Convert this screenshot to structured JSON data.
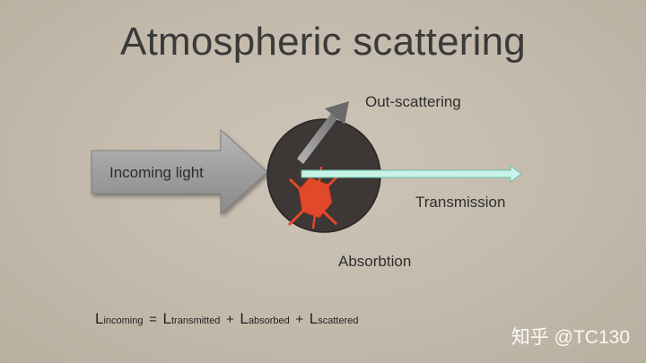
{
  "slide": {
    "title": "Atmospheric scattering",
    "labels": {
      "incoming": "Incoming light",
      "out_scattering": "Out-scattering",
      "transmission": "Transmission",
      "absorption": "Absorbtion"
    },
    "equation": {
      "lhs_symbol": "L",
      "lhs_sub": "incoming",
      "equals": "=",
      "plus": "+",
      "terms": [
        {
          "symbol": "L",
          "sub": "transmitted"
        },
        {
          "symbol": "L",
          "sub": "absorbed"
        },
        {
          "symbol": "L",
          "sub": "scattered"
        }
      ]
    },
    "watermark": "知乎 @TC130"
  },
  "colors": {
    "background": "#c6bcae",
    "particle": "#3d3735",
    "transmission_arrow": "#c9f3e8",
    "absorption_mark": "#e04a2a",
    "incoming_arrow": "#9a9a9a"
  }
}
